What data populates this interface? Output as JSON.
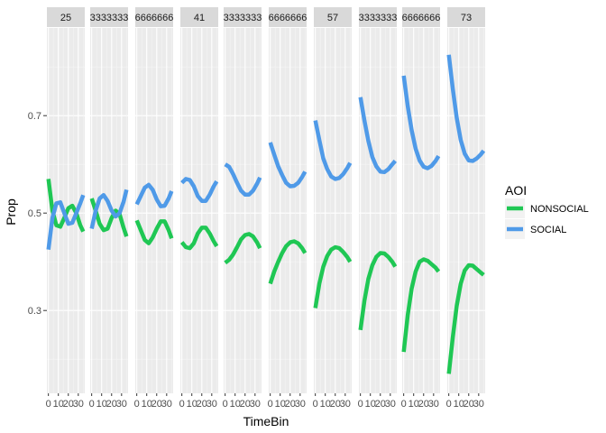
{
  "chart_data": {
    "type": "line",
    "facet_labels": [
      "25",
      "3333333",
      "6666666",
      "41",
      "3333333",
      "6666666",
      "57",
      "3333333",
      "6666666",
      "73"
    ],
    "xlabel": "TimeBin",
    "ylabel": "Prop",
    "x_ticks": [
      "0",
      "10",
      "20",
      "30"
    ],
    "y_ticks": [
      0.3,
      0.5,
      0.7
    ],
    "xlim": [
      -1.5,
      36.5
    ],
    "ylim": [
      0.13,
      0.88
    ],
    "grid": true,
    "legend": {
      "title": "AOI",
      "position": "right",
      "entries": [
        "NONSOCIAL",
        "SOCIAL"
      ]
    },
    "colors": {
      "NONSOCIAL": "#1fc754",
      "SOCIAL": "#4f9ae8",
      "strip_bg": "#d9d9d9",
      "panel_bg": "#ebebeb"
    },
    "x": [
      0,
      4,
      8,
      12,
      16,
      20,
      24,
      28,
      32,
      35
    ],
    "series": [
      {
        "name": "NONSOCIAL",
        "facets": [
          [
            0.57,
            0.505,
            0.475,
            0.472,
            0.49,
            0.51,
            0.515,
            0.5,
            0.475,
            0.462
          ],
          [
            0.53,
            0.505,
            0.478,
            0.465,
            0.468,
            0.49,
            0.505,
            0.498,
            0.47,
            0.452
          ],
          [
            0.485,
            0.465,
            0.445,
            0.438,
            0.45,
            0.468,
            0.483,
            0.483,
            0.465,
            0.448
          ],
          [
            0.44,
            0.43,
            0.428,
            0.438,
            0.458,
            0.47,
            0.47,
            0.458,
            0.442,
            0.432
          ],
          [
            0.398,
            0.404,
            0.415,
            0.43,
            0.446,
            0.455,
            0.457,
            0.452,
            0.44,
            0.428
          ],
          [
            0.355,
            0.38,
            0.4,
            0.418,
            0.432,
            0.44,
            0.442,
            0.438,
            0.428,
            0.418
          ],
          [
            0.305,
            0.355,
            0.39,
            0.412,
            0.425,
            0.43,
            0.428,
            0.42,
            0.41,
            0.4
          ],
          [
            0.26,
            0.32,
            0.365,
            0.393,
            0.41,
            0.418,
            0.417,
            0.41,
            0.4,
            0.39
          ],
          [
            0.215,
            0.29,
            0.345,
            0.38,
            0.4,
            0.405,
            0.402,
            0.395,
            0.388,
            0.38
          ],
          [
            0.17,
            0.245,
            0.31,
            0.355,
            0.382,
            0.393,
            0.392,
            0.385,
            0.378,
            0.373
          ]
        ]
      },
      {
        "name": "SOCIAL",
        "facets": [
          [
            0.425,
            0.49,
            0.52,
            0.522,
            0.5,
            0.478,
            0.48,
            0.5,
            0.52,
            0.537
          ],
          [
            0.468,
            0.505,
            0.53,
            0.537,
            0.525,
            0.505,
            0.493,
            0.5,
            0.523,
            0.548
          ],
          [
            0.518,
            0.535,
            0.552,
            0.558,
            0.548,
            0.528,
            0.514,
            0.515,
            0.53,
            0.545
          ],
          [
            0.562,
            0.57,
            0.568,
            0.555,
            0.535,
            0.525,
            0.525,
            0.538,
            0.555,
            0.565
          ],
          [
            0.6,
            0.595,
            0.58,
            0.562,
            0.546,
            0.538,
            0.538,
            0.546,
            0.56,
            0.573
          ],
          [
            0.645,
            0.62,
            0.596,
            0.578,
            0.562,
            0.555,
            0.556,
            0.562,
            0.574,
            0.585
          ],
          [
            0.69,
            0.65,
            0.612,
            0.59,
            0.575,
            0.57,
            0.572,
            0.58,
            0.592,
            0.603
          ],
          [
            0.738,
            0.69,
            0.648,
            0.615,
            0.596,
            0.585,
            0.584,
            0.59,
            0.6,
            0.607
          ],
          [
            0.782,
            0.72,
            0.67,
            0.632,
            0.608,
            0.595,
            0.592,
            0.597,
            0.607,
            0.617
          ],
          [
            0.825,
            0.755,
            0.695,
            0.65,
            0.622,
            0.608,
            0.607,
            0.612,
            0.62,
            0.628
          ]
        ]
      }
    ]
  }
}
